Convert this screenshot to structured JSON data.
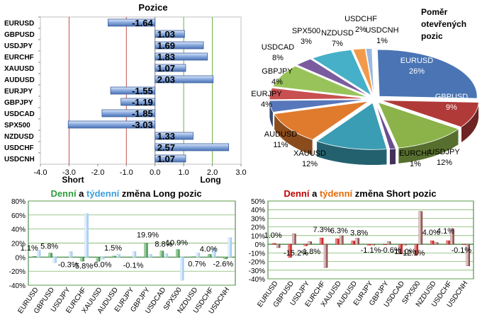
{
  "chart_data": [
    {
      "type": "bar",
      "orientation": "horizontal",
      "title": "Pozice",
      "categories": [
        "EURUSD",
        "GBPUSD",
        "USDJPY",
        "EURCHF",
        "XAUUSD",
        "AUDUSD",
        "EURJPY",
        "GBPJPY",
        "USDCAD",
        "SPX500",
        "NZDUSD",
        "USDCHF",
        "USDCNH"
      ],
      "values": [
        -1.64,
        1.03,
        1.69,
        1.83,
        1.07,
        2.03,
        -1.55,
        -1.19,
        -1.85,
        -3.03,
        1.33,
        2.57,
        1.07
      ],
      "value_labels": [
        "-1.64",
        "1.03",
        "1.69",
        "1.83",
        "1.07",
        "2.03",
        "-1.55",
        "-1.19",
        "-1.85",
        "-3.03",
        "1.33",
        "2.57",
        "1.07"
      ],
      "xlim": [
        -4.0,
        3.0
      ],
      "xticks": [
        "-4.0",
        "-3.0",
        "-2.0",
        "-1.0",
        "0.0",
        "1.0",
        "2.0",
        "3.0"
      ],
      "side_labels": {
        "short": "Short",
        "long": "Long"
      },
      "reference_lines": {
        "red": [
          -3.0,
          -1.0
        ],
        "green": [
          1.0,
          2.0
        ]
      },
      "colors": {
        "bar": "#6f95d1",
        "red_line": "#c0504d",
        "green_line": "#70ad47",
        "label_text": "#000000"
      }
    },
    {
      "type": "pie",
      "title": "Poměr otevřených pozic",
      "slices": [
        {
          "label": "EURUSD",
          "percent": "26%",
          "value": 26,
          "color": "#4a74b4"
        },
        {
          "label": "GBPUSD",
          "percent": "9%",
          "value": 9,
          "color": "#b03a38"
        },
        {
          "label": "USDJPY",
          "percent": "12%",
          "value": 12,
          "color": "#8bb34a"
        },
        {
          "label": "EURCHF",
          "percent": "1%",
          "value": 1,
          "color": "#6a4e8f"
        },
        {
          "label": "XAUUSD",
          "percent": "12%",
          "value": 12,
          "color": "#3a9db3"
        },
        {
          "label": "AUDUSD",
          "percent": "11%",
          "value": 11,
          "color": "#e07b2e"
        },
        {
          "label": "EURJPY",
          "percent": "4%",
          "value": 4,
          "color": "#5876ba"
        },
        {
          "label": "GBPJPY",
          "percent": "4%",
          "value": 4,
          "color": "#c85050"
        },
        {
          "label": "USDCAD",
          "percent": "8%",
          "value": 8,
          "color": "#98c35a"
        },
        {
          "label": "SPX500",
          "percent": "3%",
          "value": 3,
          "color": "#7a5c9e"
        },
        {
          "label": "NZDUSD",
          "percent": "7%",
          "value": 7,
          "color": "#45b0c8"
        },
        {
          "label": "USDCHF",
          "percent": "2%",
          "value": 2,
          "color": "#f29a4a"
        },
        {
          "label": "USDCNH",
          "percent": "1%",
          "value": 1,
          "color": "#9bb8e0"
        }
      ]
    },
    {
      "type": "bar",
      "title": "Denní a týdenní změna Long pozic",
      "title_parts": [
        {
          "text": "Denní",
          "color": "#2e9e3e"
        },
        {
          "text": " a ",
          "color": "#000000"
        },
        {
          "text": "týdenní",
          "color": "#3a9ee0"
        },
        {
          "text": " změna Long pozic",
          "color": "#000000"
        }
      ],
      "categories": [
        "EURUSD",
        "GBPUSD",
        "USDJPY",
        "EURCHF",
        "XAUUSD",
        "AUDUSD",
        "EURJPY",
        "GBPJPY",
        "USDCAD",
        "SPX500",
        "NZDUSD",
        "USDCHF",
        "USDCNH"
      ],
      "ylim": [
        -40,
        80
      ],
      "yticks": [
        "-40%",
        "-20%",
        "0%",
        "20%",
        "40%",
        "60%",
        "80%"
      ],
      "series": [
        {
          "name": "Denní",
          "values": [
            1.1,
            5.8,
            -0.3,
            -5.8,
            -6.0,
            1.5,
            -0.1,
            19.9,
            8.8,
            10.9,
            0.7,
            4.0,
            -2.6
          ],
          "color": "#2f8a3a"
        },
        {
          "name": "Týdenní",
          "values": [
            10.0,
            -8.0,
            8.0,
            62.0,
            -3.0,
            4.0,
            8.0,
            4.0,
            5.0,
            -33.0,
            6.0,
            13.0,
            28.0
          ],
          "color": "#a8cdf2"
        }
      ],
      "value_labels": [
        "1.1%",
        "5.8%",
        "-0.3%",
        "-5.8%",
        "-6.0%",
        "1.5%",
        "-0.1%",
        "19.9%",
        "8.8%",
        "10.9%",
        "0.7%",
        "4.0%",
        "-2.6%"
      ]
    },
    {
      "type": "bar",
      "title": "Denní a týdenní změna Short pozic",
      "title_parts": [
        {
          "text": "Denní",
          "color": "#c00000"
        },
        {
          "text": " a ",
          "color": "#000000"
        },
        {
          "text": "týdenní",
          "color": "#e26b0a"
        },
        {
          "text": " změna Short pozic",
          "color": "#000000"
        }
      ],
      "categories": [
        "EURUSD",
        "GBPUSD",
        "USDJPY",
        "EURCHF",
        "XAUUSD",
        "AUDUSD",
        "EURJPY",
        "GBPJPY",
        "USDCAD",
        "SPX500",
        "NZDUSD",
        "USDCHF",
        "USDCNH"
      ],
      "ylim": [
        -40,
        50
      ],
      "yticks": [
        "-40%",
        "-30%",
        "-20%",
        "-10%",
        "0%",
        "10%",
        "20%",
        "30%",
        "40%",
        "50%"
      ],
      "series": [
        {
          "name": "Denní",
          "values": [
            1.0,
            -15.2,
            -1.8,
            7.3,
            6.3,
            3.8,
            -1.1,
            -0.6,
            -11.0,
            -12.1,
            4.0,
            4.1,
            -0.1
          ],
          "color": "#c00000"
        },
        {
          "name": "Týdenní",
          "values": [
            -4.0,
            12.0,
            3.0,
            -27.0,
            10.0,
            7.0,
            -1.0,
            3.0,
            -1.0,
            38.0,
            2.0,
            18.0,
            -25.0
          ],
          "color": "#7b2b2b"
        }
      ],
      "value_labels": [
        "1.0%",
        "-15.2%",
        "-1.8%",
        "7.3%",
        "6.3%",
        "3.8%",
        "-1.1%",
        "-0.6%",
        "-11.0%",
        "-12.1%",
        "4.0%",
        "4.1%",
        "-0.1%"
      ]
    }
  ]
}
